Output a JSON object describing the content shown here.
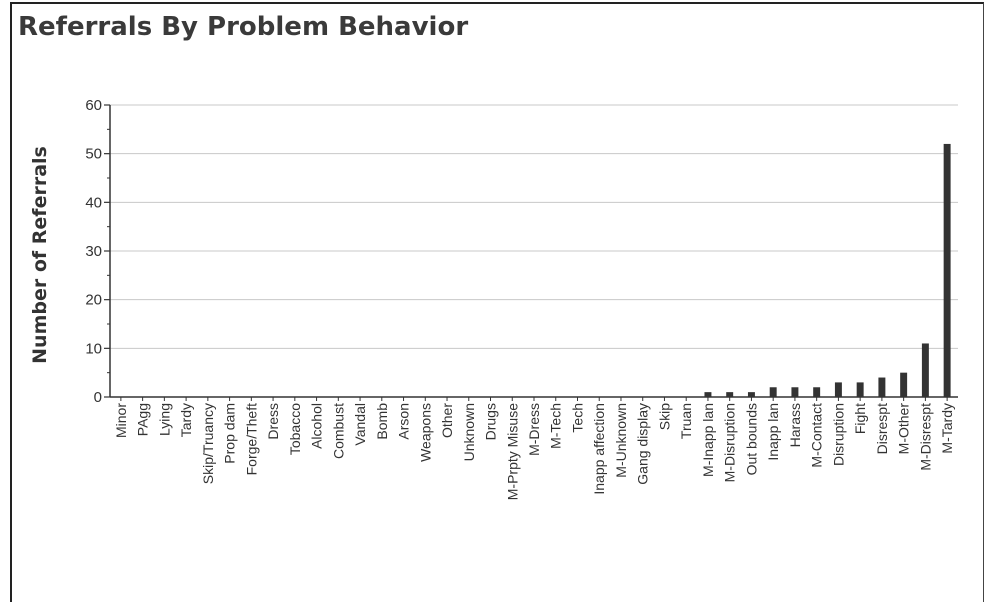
{
  "chart_data": {
    "type": "bar",
    "title": "Referrals By Problem Behavior",
    "xlabel": "",
    "ylabel": "Number of Referrals",
    "ylim": [
      0,
      60
    ],
    "yticks": [
      0,
      10,
      20,
      30,
      40,
      50,
      60
    ],
    "grid": true,
    "categories": [
      "Minor",
      "PAgg",
      "Lying",
      "Tardy",
      "Skip/Truancy",
      "Prop dam",
      "Forge/Theft",
      "Dress",
      "Tobacco",
      "Alcohol",
      "Combust",
      "Vandal",
      "Bomb",
      "Arson",
      "Weapons",
      "Other",
      "Unknown",
      "Drugs",
      "M-Prpty Misuse",
      "M-Dress",
      "M-Tech",
      "Tech",
      "Inapp affection",
      "M-Unknown",
      "Gang display",
      "Skip",
      "Truan",
      "M-Inapp lan",
      "M-Disruption",
      "Out bounds",
      "Inapp lan",
      "Harass",
      "M-Contact",
      "Disruption",
      "Fight",
      "Disrespt",
      "M-Other",
      "M-Disrespt",
      "M-Tardy"
    ],
    "values": [
      0,
      0,
      0,
      0,
      0,
      0,
      0,
      0,
      0,
      0,
      0,
      0,
      0,
      0,
      0,
      0,
      0,
      0,
      0,
      0,
      0,
      0,
      0,
      0,
      0,
      0,
      0,
      1,
      1,
      1,
      2,
      2,
      2,
      3,
      3,
      4,
      5,
      11,
      52
    ],
    "bar_color": "#333333"
  }
}
